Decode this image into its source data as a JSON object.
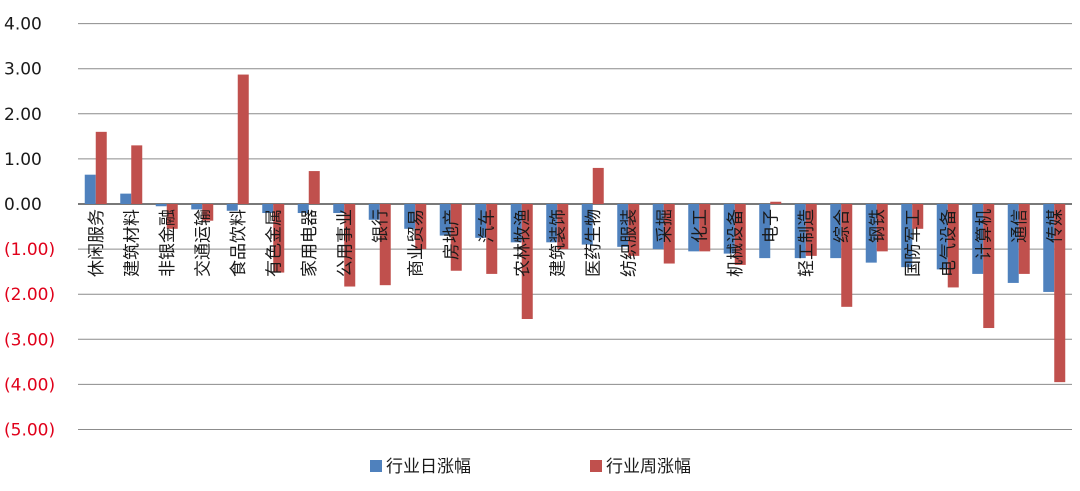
{
  "chart_data": {
    "type": "bar",
    "categories": [
      "休闲服务",
      "建筑材料",
      "非银金融",
      "交通运输",
      "食品饮料",
      "有色金属",
      "家用电器",
      "公用事业",
      "银行",
      "商业贸易",
      "房地产",
      "汽车",
      "农林牧渔",
      "建筑装饰",
      "医药生物",
      "纺织服装",
      "采掘",
      "化工",
      "机械设备",
      "电子",
      "轻工制造",
      "综合",
      "钢铁",
      "国防军工",
      "电气设备",
      "计算机",
      "通信",
      "传媒"
    ],
    "series": [
      {
        "name": "行业日涨幅",
        "color": "#4f81bd",
        "values": [
          0.65,
          0.23,
          -0.05,
          -0.12,
          -0.15,
          -0.2,
          -0.2,
          -0.2,
          -0.35,
          -0.55,
          -0.7,
          -0.75,
          -0.85,
          -0.85,
          -0.9,
          -0.95,
          -1.0,
          -1.05,
          -1.1,
          -1.2,
          -1.2,
          -1.2,
          -1.3,
          -1.4,
          -1.45,
          -1.55,
          -1.75,
          -1.95
        ]
      },
      {
        "name": "行业周涨幅",
        "color": "#c0504d",
        "values": [
          1.6,
          1.3,
          -0.55,
          -0.37,
          2.87,
          -1.52,
          0.73,
          -1.83,
          -1.8,
          -1.0,
          -1.48,
          -1.55,
          -2.55,
          -1.0,
          0.8,
          -1.15,
          -1.32,
          -1.05,
          -1.35,
          0.05,
          -1.15,
          -2.28,
          -1.05,
          -0.55,
          -1.85,
          -2.75,
          -1.55,
          -3.95
        ]
      }
    ],
    "yticks": [
      "4.00",
      "3.00",
      "2.00",
      "1.00",
      "0.00",
      "(1.00)",
      "(2.00)",
      "(3.00)",
      "(4.00)",
      "(5.00)"
    ],
    "ylim": [
      -5,
      4
    ],
    "grid": true,
    "legend_position": "bottom"
  }
}
